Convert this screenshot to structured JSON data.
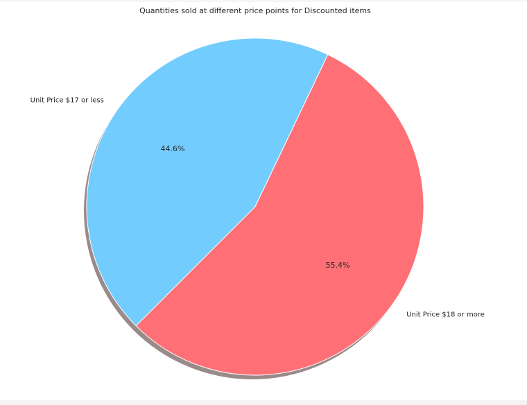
{
  "chart_data": {
    "type": "pie",
    "title": "Quantities sold at different price points for Discounted items",
    "slices": [
      {
        "label": "Unit Price $17 or less",
        "value": 44.6,
        "pct_label": "44.6%",
        "color": "#73ccfe"
      },
      {
        "label": "Unit Price $18 or more",
        "value": 55.4,
        "pct_label": "55.4%",
        "color": "#fe7076"
      }
    ],
    "shadow": true,
    "shadow_color": "#9a8a8a",
    "edge_color": "#ffffff"
  }
}
